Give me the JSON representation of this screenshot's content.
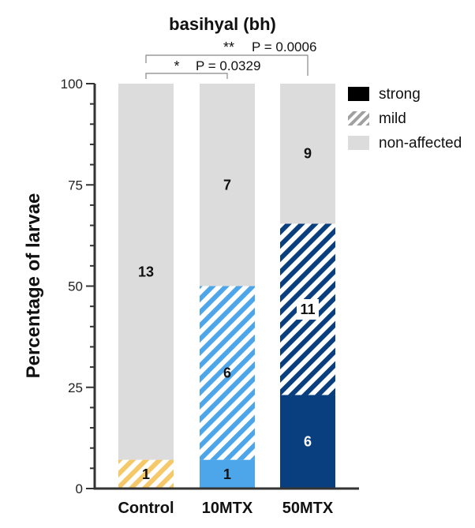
{
  "chart_data": {
    "type": "bar",
    "stacked": true,
    "title": "basihyal (bh)",
    "ylabel": "Percentage of larvae",
    "xlabel": "",
    "ylim": [
      0,
      100
    ],
    "yticks": [
      0,
      25,
      50,
      75,
      100
    ],
    "categories": [
      "Control",
      "10MTX",
      "50MTX"
    ],
    "series": [
      {
        "name": "strong",
        "values": [
          0,
          7.1,
          23.1
        ],
        "counts": [
          "",
          "1",
          "6"
        ]
      },
      {
        "name": "mild",
        "values": [
          7.1,
          42.9,
          42.3
        ],
        "counts": [
          "1",
          "6",
          "11"
        ]
      },
      {
        "name": "non-affected",
        "values": [
          92.9,
          50.0,
          34.6
        ],
        "counts": [
          "13",
          "7",
          "9"
        ]
      }
    ],
    "colors": {
      "strong": [
        "#000000",
        "#4da6ea",
        "#0a3f7f"
      ],
      "mild": [
        "#f5c869",
        "#4da6ea",
        "#0a3f7f"
      ],
      "non_affected": "#dcdcdc",
      "legend_strong": "#000000",
      "legend_mild": "#a0a0a0",
      "legend_non_affected": "#dcdcdc"
    },
    "legend": {
      "position": "top-right",
      "entries": [
        "strong",
        "mild",
        "non-affected"
      ]
    },
    "significance": [
      {
        "from": "Control",
        "to": "10MTX",
        "stars": "*",
        "label": "P = 0.0329"
      },
      {
        "from": "Control",
        "to": "50MTX",
        "stars": "**",
        "label": "P = 0.0006"
      }
    ],
    "grid": false
  }
}
